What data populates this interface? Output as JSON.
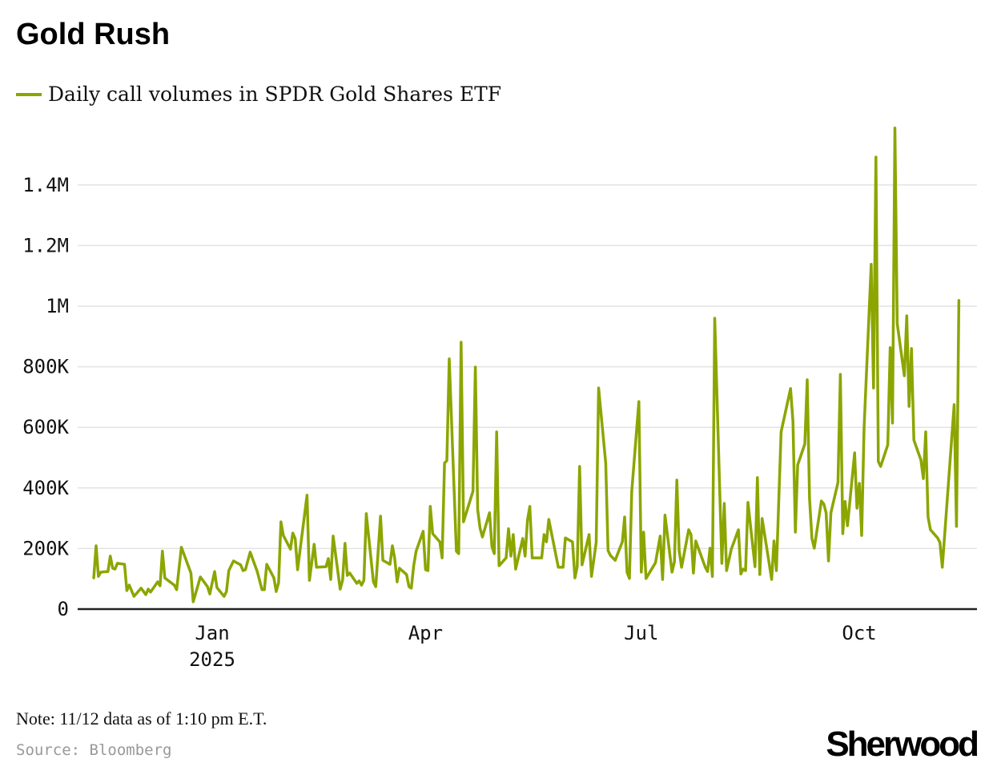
{
  "title": "Gold Rush",
  "note": "Note: 11/12 data as of 1:10 pm E.T.",
  "source": "Source: Bloomberg",
  "logo": "Sherwood",
  "colors": {
    "series": "#8ca500",
    "grid": "#e3e3e3",
    "axis": "#222222"
  },
  "chart_data": {
    "type": "line",
    "title": "Gold Rush",
    "xlabel": "",
    "ylabel": "",
    "grid": true,
    "legend_position": "top-left",
    "ylim": [
      0,
      1600000
    ],
    "y_ticks": [
      {
        "value": 0,
        "label": "0"
      },
      {
        "value": 200000,
        "label": "200K"
      },
      {
        "value": 400000,
        "label": "400K"
      },
      {
        "value": 600000,
        "label": "600K"
      },
      {
        "value": 800000,
        "label": "800K"
      },
      {
        "value": 1000000,
        "label": "1M"
      },
      {
        "value": 1200000,
        "label": "1.2M"
      },
      {
        "value": 1400000,
        "label": "1.4M"
      }
    ],
    "x_ticks": [
      {
        "date": "2025-01-01",
        "label": "Jan",
        "sublabel": "2025"
      },
      {
        "date": "2025-04-01",
        "label": "Apr"
      },
      {
        "date": "2025-07-01",
        "label": "Jul"
      },
      {
        "date": "2025-10-01",
        "label": "Oct"
      }
    ],
    "series": [
      {
        "name": "Daily call volumes in SPDR Gold Shares ETF",
        "points": [
          [
            "2024-11-12",
            101000
          ],
          [
            "2024-11-13",
            209000
          ],
          [
            "2024-11-14",
            108000
          ],
          [
            "2024-11-15",
            122000
          ],
          [
            "2024-11-18",
            124000
          ],
          [
            "2024-11-19",
            175000
          ],
          [
            "2024-11-20",
            135000
          ],
          [
            "2024-11-21",
            132000
          ],
          [
            "2024-11-22",
            151000
          ],
          [
            "2024-11-25",
            148000
          ],
          [
            "2024-11-26",
            61000
          ],
          [
            "2024-11-27",
            79000
          ],
          [
            "2024-11-29",
            42000
          ],
          [
            "2024-12-02",
            69000
          ],
          [
            "2024-12-04",
            48000
          ],
          [
            "2024-12-05",
            66000
          ],
          [
            "2024-12-06",
            56000
          ],
          [
            "2024-12-09",
            90000
          ],
          [
            "2024-12-10",
            77000
          ],
          [
            "2024-12-11",
            191000
          ],
          [
            "2024-12-12",
            103000
          ],
          [
            "2024-12-16",
            79000
          ],
          [
            "2024-12-17",
            64000
          ],
          [
            "2024-12-19",
            204000
          ],
          [
            "2024-12-23",
            119000
          ],
          [
            "2024-12-24",
            24000
          ],
          [
            "2024-12-27",
            106000
          ],
          [
            "2024-12-30",
            74000
          ],
          [
            "2024-12-31",
            50000
          ],
          [
            "2025-01-02",
            124000
          ],
          [
            "2025-01-03",
            71000
          ],
          [
            "2025-01-06",
            42000
          ],
          [
            "2025-01-07",
            58000
          ],
          [
            "2025-01-08",
            127000
          ],
          [
            "2025-01-10",
            159000
          ],
          [
            "2025-01-13",
            146000
          ],
          [
            "2025-01-14",
            127000
          ],
          [
            "2025-01-15",
            130000
          ],
          [
            "2025-01-17",
            188000
          ],
          [
            "2025-01-20",
            124000
          ],
          [
            "2025-01-22",
            64000
          ],
          [
            "2025-01-23",
            64000
          ],
          [
            "2025-01-24",
            148000
          ],
          [
            "2025-01-27",
            103000
          ],
          [
            "2025-01-28",
            58000
          ],
          [
            "2025-01-29",
            87000
          ],
          [
            "2025-01-30",
            288000
          ],
          [
            "2025-01-31",
            243000
          ],
          [
            "2025-02-03",
            198000
          ],
          [
            "2025-02-04",
            251000
          ],
          [
            "2025-02-05",
            233000
          ],
          [
            "2025-02-06",
            130000
          ],
          [
            "2025-02-10",
            376000
          ],
          [
            "2025-02-11",
            95000
          ],
          [
            "2025-02-13",
            214000
          ],
          [
            "2025-02-14",
            138000
          ],
          [
            "2025-02-18",
            140000
          ],
          [
            "2025-02-19",
            167000
          ],
          [
            "2025-02-20",
            98000
          ],
          [
            "2025-02-21",
            241000
          ],
          [
            "2025-02-24",
            66000
          ],
          [
            "2025-02-25",
            95000
          ],
          [
            "2025-02-26",
            217000
          ],
          [
            "2025-02-27",
            111000
          ],
          [
            "2025-02-28",
            119000
          ],
          [
            "2025-03-03",
            85000
          ],
          [
            "2025-03-04",
            93000
          ],
          [
            "2025-03-05",
            79000
          ],
          [
            "2025-03-06",
            95000
          ],
          [
            "2025-03-07",
            315000
          ],
          [
            "2025-03-10",
            90000
          ],
          [
            "2025-03-11",
            74000
          ],
          [
            "2025-03-13",
            307000
          ],
          [
            "2025-03-14",
            161000
          ],
          [
            "2025-03-17",
            148000
          ],
          [
            "2025-03-18",
            209000
          ],
          [
            "2025-03-19",
            167000
          ],
          [
            "2025-03-20",
            90000
          ],
          [
            "2025-03-21",
            135000
          ],
          [
            "2025-03-24",
            114000
          ],
          [
            "2025-03-25",
            74000
          ],
          [
            "2025-03-26",
            69000
          ],
          [
            "2025-03-27",
            143000
          ],
          [
            "2025-03-28",
            191000
          ],
          [
            "2025-03-31",
            257000
          ],
          [
            "2025-04-01",
            130000
          ],
          [
            "2025-04-02",
            127000
          ],
          [
            "2025-04-03",
            339000
          ],
          [
            "2025-04-04",
            249000
          ],
          [
            "2025-04-07",
            222000
          ],
          [
            "2025-04-08",
            169000
          ],
          [
            "2025-04-09",
            482000
          ],
          [
            "2025-04-10",
            490000
          ],
          [
            "2025-04-11",
            826000
          ],
          [
            "2025-04-14",
            191000
          ],
          [
            "2025-04-15",
            183000
          ],
          [
            "2025-04-16",
            881000
          ],
          [
            "2025-04-17",
            288000
          ],
          [
            "2025-04-21",
            389000
          ],
          [
            "2025-04-22",
            799000
          ],
          [
            "2025-04-23",
            328000
          ],
          [
            "2025-04-24",
            267000
          ],
          [
            "2025-04-25",
            238000
          ],
          [
            "2025-04-28",
            318000
          ],
          [
            "2025-04-29",
            206000
          ],
          [
            "2025-04-30",
            183000
          ],
          [
            "2025-05-01",
            585000
          ],
          [
            "2025-05-02",
            143000
          ],
          [
            "2025-05-05",
            169000
          ],
          [
            "2025-05-06",
            265000
          ],
          [
            "2025-05-07",
            175000
          ],
          [
            "2025-05-08",
            246000
          ],
          [
            "2025-05-09",
            132000
          ],
          [
            "2025-05-12",
            233000
          ],
          [
            "2025-05-13",
            175000
          ],
          [
            "2025-05-14",
            294000
          ],
          [
            "2025-05-15",
            339000
          ],
          [
            "2025-05-16",
            169000
          ],
          [
            "2025-05-20",
            169000
          ],
          [
            "2025-05-21",
            246000
          ],
          [
            "2025-05-22",
            222000
          ],
          [
            "2025-05-23",
            296000
          ],
          [
            "2025-05-27",
            138000
          ],
          [
            "2025-05-29",
            138000
          ],
          [
            "2025-05-30",
            235000
          ],
          [
            "2025-06-02",
            222000
          ],
          [
            "2025-06-03",
            103000
          ],
          [
            "2025-06-04",
            140000
          ],
          [
            "2025-06-05",
            471000
          ],
          [
            "2025-06-06",
            146000
          ],
          [
            "2025-06-09",
            246000
          ],
          [
            "2025-06-10",
            108000
          ],
          [
            "2025-06-12",
            220000
          ],
          [
            "2025-06-13",
            730000
          ],
          [
            "2025-06-16",
            482000
          ],
          [
            "2025-06-17",
            193000
          ],
          [
            "2025-06-18",
            177000
          ],
          [
            "2025-06-20",
            161000
          ],
          [
            "2025-06-23",
            222000
          ],
          [
            "2025-06-24",
            304000
          ],
          [
            "2025-06-25",
            122000
          ],
          [
            "2025-06-26",
            101000
          ],
          [
            "2025-06-27",
            389000
          ],
          [
            "2025-06-30",
            685000
          ],
          [
            "2025-07-01",
            122000
          ],
          [
            "2025-07-02",
            254000
          ],
          [
            "2025-07-03",
            101000
          ],
          [
            "2025-07-07",
            153000
          ],
          [
            "2025-07-09",
            241000
          ],
          [
            "2025-07-10",
            98000
          ],
          [
            "2025-07-11",
            310000
          ],
          [
            "2025-07-14",
            122000
          ],
          [
            "2025-07-15",
            156000
          ],
          [
            "2025-07-16",
            426000
          ],
          [
            "2025-07-17",
            193000
          ],
          [
            "2025-07-18",
            138000
          ],
          [
            "2025-07-21",
            262000
          ],
          [
            "2025-07-22",
            246000
          ],
          [
            "2025-07-23",
            119000
          ],
          [
            "2025-07-24",
            225000
          ],
          [
            "2025-07-28",
            138000
          ],
          [
            "2025-07-29",
            124000
          ],
          [
            "2025-07-30",
            201000
          ],
          [
            "2025-07-31",
            108000
          ],
          [
            "2025-08-01",
            960000
          ],
          [
            "2025-08-04",
            151000
          ],
          [
            "2025-08-05",
            349000
          ],
          [
            "2025-08-06",
            127000
          ],
          [
            "2025-08-08",
            198000
          ],
          [
            "2025-08-11",
            262000
          ],
          [
            "2025-08-12",
            116000
          ],
          [
            "2025-08-13",
            132000
          ],
          [
            "2025-08-14",
            127000
          ],
          [
            "2025-08-15",
            352000
          ],
          [
            "2025-08-18",
            140000
          ],
          [
            "2025-08-19",
            434000
          ],
          [
            "2025-08-20",
            114000
          ],
          [
            "2025-08-21",
            299000
          ],
          [
            "2025-08-25",
            98000
          ],
          [
            "2025-08-26",
            225000
          ],
          [
            "2025-08-27",
            127000
          ],
          [
            "2025-08-29",
            585000
          ],
          [
            "2025-09-02",
            728000
          ],
          [
            "2025-09-03",
            619000
          ],
          [
            "2025-09-04",
            254000
          ],
          [
            "2025-09-05",
            476000
          ],
          [
            "2025-09-08",
            545000
          ],
          [
            "2025-09-09",
            757000
          ],
          [
            "2025-09-10",
            365000
          ],
          [
            "2025-09-11",
            233000
          ],
          [
            "2025-09-12",
            201000
          ],
          [
            "2025-09-15",
            357000
          ],
          [
            "2025-09-16",
            347000
          ],
          [
            "2025-09-17",
            318000
          ],
          [
            "2025-09-18",
            159000
          ],
          [
            "2025-09-19",
            318000
          ],
          [
            "2025-09-22",
            418000
          ],
          [
            "2025-09-23",
            775000
          ],
          [
            "2025-09-24",
            249000
          ],
          [
            "2025-09-25",
            355000
          ],
          [
            "2025-09-26",
            275000
          ],
          [
            "2025-09-29",
            516000
          ],
          [
            "2025-09-30",
            333000
          ],
          [
            "2025-10-01",
            415000
          ],
          [
            "2025-10-02",
            243000
          ],
          [
            "2025-10-03",
            598000
          ],
          [
            "2025-10-06",
            1138000
          ],
          [
            "2025-10-07",
            730000
          ],
          [
            "2025-10-08",
            1492000
          ],
          [
            "2025-10-09",
            487000
          ],
          [
            "2025-10-10",
            471000
          ],
          [
            "2025-10-13",
            542000
          ],
          [
            "2025-10-14",
            863000
          ],
          [
            "2025-10-15",
            614000
          ],
          [
            "2025-10-16",
            1588000
          ],
          [
            "2025-10-17",
            942000
          ],
          [
            "2025-10-20",
            770000
          ],
          [
            "2025-10-21",
            968000
          ],
          [
            "2025-10-22",
            669000
          ],
          [
            "2025-10-23",
            860000
          ],
          [
            "2025-10-24",
            558000
          ],
          [
            "2025-10-27",
            492000
          ],
          [
            "2025-10-28",
            431000
          ],
          [
            "2025-10-29",
            585000
          ],
          [
            "2025-10-30",
            304000
          ],
          [
            "2025-10-31",
            262000
          ],
          [
            "2025-11-03",
            235000
          ],
          [
            "2025-11-04",
            220000
          ],
          [
            "2025-11-05",
            138000
          ],
          [
            "2025-11-10",
            675000
          ],
          [
            "2025-11-11",
            273000
          ],
          [
            "2025-11-12",
            1021000
          ]
        ]
      }
    ]
  }
}
